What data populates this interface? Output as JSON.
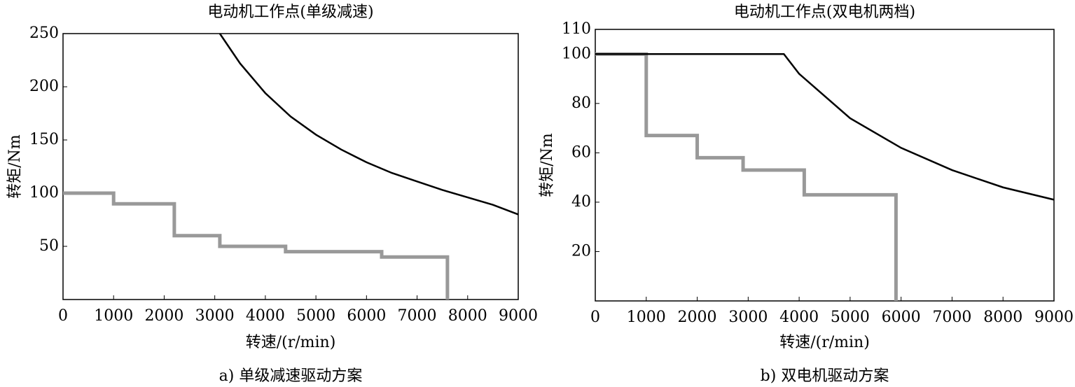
{
  "chart_data": [
    {
      "type": "line",
      "title": "电动机工作点(单级减速)",
      "xlabel": "转速/(r/min)",
      "ylabel": "转矩/Nm",
      "caption": "a) 单级减速驱动方案",
      "xlim": [
        0,
        9000
      ],
      "xticks": [
        0,
        1000,
        2000,
        3000,
        4000,
        5000,
        6000,
        7000,
        8000,
        9000
      ],
      "ylim": [
        0,
        250
      ],
      "yticks": [
        50,
        100,
        150,
        200,
        250
      ],
      "series": [
        {
          "color": "#999999",
          "x": [
            0,
            1000,
            1000,
            2200,
            2200,
            3100,
            3100,
            4400,
            4400,
            6300,
            6300,
            7600,
            7600
          ],
          "values": [
            100,
            100,
            90,
            90,
            60,
            60,
            50,
            50,
            45,
            45,
            40,
            40,
            0
          ]
        },
        {
          "color": "#000000",
          "x": [
            3100,
            3500,
            4000,
            4500,
            5000,
            5500,
            6000,
            6500,
            7000,
            7500,
            8000,
            8500,
            9000
          ],
          "values": [
            250,
            222,
            194,
            172,
            155,
            141,
            129,
            119,
            111,
            103,
            96,
            89,
            80
          ]
        }
      ]
    },
    {
      "type": "line",
      "title": "电动机工作点(双电机两档)",
      "xlabel": "转速/(r/min)",
      "ylabel": "转矩/Nm",
      "caption": "b) 双电机驱动方案",
      "xlim": [
        0,
        9000
      ],
      "xticks": [
        0,
        1000,
        2000,
        3000,
        4000,
        5000,
        6000,
        7000,
        8000,
        9000
      ],
      "ylim": [
        0,
        110
      ],
      "yticks": [
        20,
        40,
        60,
        80,
        100,
        110
      ],
      "series": [
        {
          "color": "#999999",
          "x": [
            0,
            1000,
            1000,
            2000,
            2000,
            2900,
            2900,
            4100,
            4100,
            5900,
            5900
          ],
          "values": [
            100,
            100,
            67,
            67,
            58,
            58,
            53,
            53,
            43,
            43,
            0
          ]
        },
        {
          "color": "#000000",
          "x": [
            0,
            3700,
            4000,
            5000,
            6000,
            7000,
            8000,
            9000
          ],
          "values": [
            100,
            100,
            92,
            74,
            62,
            53,
            46,
            41
          ]
        }
      ]
    }
  ]
}
